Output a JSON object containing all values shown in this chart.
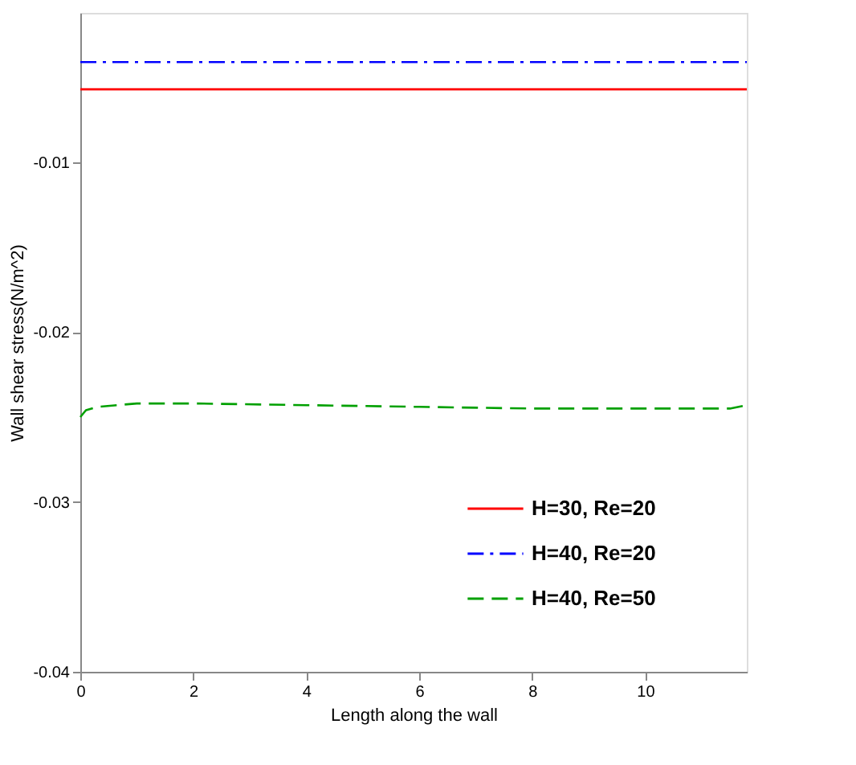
{
  "chart_data": {
    "type": "line",
    "xlabel": "Length along the wall",
    "ylabel": "Wall shear stress(N/m^2)",
    "xlim": [
      0,
      11.8
    ],
    "ylim": [
      -0.04,
      -0.0012
    ],
    "xticks": [
      0,
      2,
      4,
      6,
      8,
      10
    ],
    "yticks": [
      -0.04,
      -0.03,
      -0.02,
      -0.01
    ],
    "legend": "bottom right",
    "grid": false,
    "series": [
      {
        "name": "H=30, Re=20",
        "color": "#ff0000",
        "line_style": "solid",
        "x": [
          0,
          4,
          8,
          11.8
        ],
        "values": [
          -0.0057,
          -0.0057,
          -0.0057,
          -0.0057
        ]
      },
      {
        "name": "H=40, Re=20",
        "color": "#0000ff",
        "line_style": "dashdot",
        "x": [
          0,
          4,
          8,
          11.8
        ],
        "values": [
          -0.0041,
          -0.0041,
          -0.0041,
          -0.0041
        ]
      },
      {
        "name": "H=40, Re=50",
        "color": "#00a000",
        "line_style": "dashed",
        "x": [
          0,
          0.1,
          0.3,
          1,
          2,
          4,
          6,
          8,
          10,
          11.5,
          11.8
        ],
        "values": [
          -0.025,
          -0.0246,
          -0.0244,
          -0.0242,
          -0.0242,
          -0.0243,
          -0.0244,
          -0.0245,
          -0.0245,
          -0.0245,
          -0.0243
        ]
      }
    ]
  }
}
